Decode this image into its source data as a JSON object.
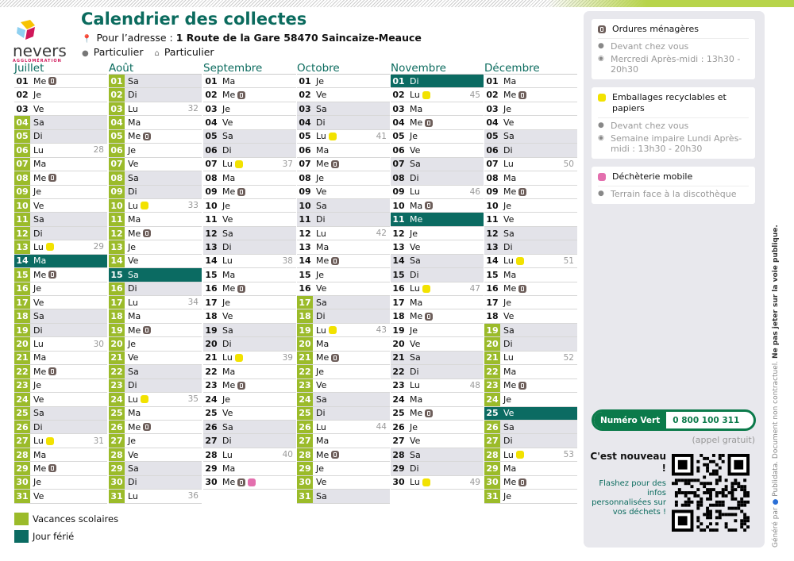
{
  "header": {
    "title": "Calendrier des collectes",
    "address_label": "Pour l’adresse :",
    "address": "1 Route de la Gare 58470 Saincaize-Meauce",
    "profile1": "Particulier",
    "profile2": "Particulier"
  },
  "logo": {
    "word": "nevers",
    "sub": "AGGLOMÉRATION"
  },
  "colors": {
    "vacances": "#9bbb2a",
    "ferie": "#0b6b62",
    "weekend": "#e3e3e9",
    "title": "#0b6b5e"
  },
  "months": [
    {
      "name": "Juillet",
      "days": [
        {
          "d": "01",
          "w": "Me",
          "ic": [
            "ordures"
          ]
        },
        {
          "d": "02",
          "w": "Je"
        },
        {
          "d": "03",
          "w": "Ve"
        },
        {
          "d": "04",
          "w": "Sa",
          "t": "v"
        },
        {
          "d": "05",
          "w": "Di",
          "t": "v"
        },
        {
          "d": "06",
          "w": "Lu",
          "wk": "28",
          "t": "v"
        },
        {
          "d": "07",
          "w": "Ma",
          "t": "v"
        },
        {
          "d": "08",
          "w": "Me",
          "ic": [
            "ordures"
          ],
          "t": "v"
        },
        {
          "d": "09",
          "w": "Je",
          "t": "v"
        },
        {
          "d": "10",
          "w": "Ve",
          "t": "v"
        },
        {
          "d": "11",
          "w": "Sa",
          "t": "v"
        },
        {
          "d": "12",
          "w": "Di",
          "t": "v"
        },
        {
          "d": "13",
          "w": "Lu",
          "wk": "29",
          "ic": [
            "emballages"
          ],
          "t": "v"
        },
        {
          "d": "14",
          "w": "Ma",
          "t": "f"
        },
        {
          "d": "15",
          "w": "Me",
          "ic": [
            "ordures"
          ],
          "t": "v"
        },
        {
          "d": "16",
          "w": "Je",
          "t": "v"
        },
        {
          "d": "17",
          "w": "Ve",
          "t": "v"
        },
        {
          "d": "18",
          "w": "Sa",
          "t": "v"
        },
        {
          "d": "19",
          "w": "Di",
          "t": "v"
        },
        {
          "d": "20",
          "w": "Lu",
          "wk": "30",
          "t": "v"
        },
        {
          "d": "21",
          "w": "Ma",
          "t": "v"
        },
        {
          "d": "22",
          "w": "Me",
          "ic": [
            "ordures"
          ],
          "t": "v"
        },
        {
          "d": "23",
          "w": "Je",
          "t": "v"
        },
        {
          "d": "24",
          "w": "Ve",
          "t": "v"
        },
        {
          "d": "25",
          "w": "Sa",
          "t": "v"
        },
        {
          "d": "26",
          "w": "Di",
          "t": "v"
        },
        {
          "d": "27",
          "w": "Lu",
          "wk": "31",
          "ic": [
            "emballages"
          ],
          "t": "v"
        },
        {
          "d": "28",
          "w": "Ma",
          "t": "v"
        },
        {
          "d": "29",
          "w": "Me",
          "ic": [
            "ordures"
          ],
          "t": "v"
        },
        {
          "d": "30",
          "w": "Je",
          "t": "v"
        },
        {
          "d": "31",
          "w": "Ve",
          "t": "v"
        }
      ]
    },
    {
      "name": "Août",
      "days": [
        {
          "d": "01",
          "w": "Sa",
          "t": "v"
        },
        {
          "d": "02",
          "w": "Di",
          "t": "v"
        },
        {
          "d": "03",
          "w": "Lu",
          "wk": "32",
          "t": "v"
        },
        {
          "d": "04",
          "w": "Ma",
          "t": "v"
        },
        {
          "d": "05",
          "w": "Me",
          "ic": [
            "ordures"
          ],
          "t": "v"
        },
        {
          "d": "06",
          "w": "Je",
          "t": "v"
        },
        {
          "d": "07",
          "w": "Ve",
          "t": "v"
        },
        {
          "d": "08",
          "w": "Sa",
          "t": "v"
        },
        {
          "d": "09",
          "w": "Di",
          "t": "v"
        },
        {
          "d": "10",
          "w": "Lu",
          "wk": "33",
          "ic": [
            "emballages"
          ],
          "t": "v"
        },
        {
          "d": "11",
          "w": "Ma",
          "t": "v"
        },
        {
          "d": "12",
          "w": "Me",
          "ic": [
            "ordures"
          ],
          "t": "v"
        },
        {
          "d": "13",
          "w": "Je",
          "t": "v"
        },
        {
          "d": "14",
          "w": "Ve",
          "t": "v"
        },
        {
          "d": "15",
          "w": "Sa",
          "t": "f"
        },
        {
          "d": "16",
          "w": "Di",
          "t": "v"
        },
        {
          "d": "17",
          "w": "Lu",
          "wk": "34",
          "t": "v"
        },
        {
          "d": "18",
          "w": "Ma",
          "t": "v"
        },
        {
          "d": "19",
          "w": "Me",
          "ic": [
            "ordures"
          ],
          "t": "v"
        },
        {
          "d": "20",
          "w": "Je",
          "t": "v"
        },
        {
          "d": "21",
          "w": "Ve",
          "t": "v"
        },
        {
          "d": "22",
          "w": "Sa",
          "t": "v"
        },
        {
          "d": "23",
          "w": "Di",
          "t": "v"
        },
        {
          "d": "24",
          "w": "Lu",
          "wk": "35",
          "ic": [
            "emballages"
          ],
          "t": "v"
        },
        {
          "d": "25",
          "w": "Ma",
          "t": "v"
        },
        {
          "d": "26",
          "w": "Me",
          "ic": [
            "ordures"
          ],
          "t": "v"
        },
        {
          "d": "27",
          "w": "Je",
          "t": "v"
        },
        {
          "d": "28",
          "w": "Ve",
          "t": "v"
        },
        {
          "d": "29",
          "w": "Sa",
          "t": "v"
        },
        {
          "d": "30",
          "w": "Di",
          "t": "v"
        },
        {
          "d": "31",
          "w": "Lu",
          "wk": "36",
          "t": "v"
        }
      ]
    },
    {
      "name": "Septembre",
      "days": [
        {
          "d": "01",
          "w": "Ma"
        },
        {
          "d": "02",
          "w": "Me",
          "ic": [
            "ordures"
          ]
        },
        {
          "d": "03",
          "w": "Je"
        },
        {
          "d": "04",
          "w": "Ve"
        },
        {
          "d": "05",
          "w": "Sa"
        },
        {
          "d": "06",
          "w": "Di"
        },
        {
          "d": "07",
          "w": "Lu",
          "wk": "37",
          "ic": [
            "emballages"
          ]
        },
        {
          "d": "08",
          "w": "Ma"
        },
        {
          "d": "09",
          "w": "Me",
          "ic": [
            "ordures"
          ]
        },
        {
          "d": "10",
          "w": "Je"
        },
        {
          "d": "11",
          "w": "Ve"
        },
        {
          "d": "12",
          "w": "Sa"
        },
        {
          "d": "13",
          "w": "Di"
        },
        {
          "d": "14",
          "w": "Lu",
          "wk": "38"
        },
        {
          "d": "15",
          "w": "Ma"
        },
        {
          "d": "16",
          "w": "Me",
          "ic": [
            "ordures"
          ]
        },
        {
          "d": "17",
          "w": "Je"
        },
        {
          "d": "18",
          "w": "Ve"
        },
        {
          "d": "19",
          "w": "Sa"
        },
        {
          "d": "20",
          "w": "Di"
        },
        {
          "d": "21",
          "w": "Lu",
          "wk": "39",
          "ic": [
            "emballages"
          ]
        },
        {
          "d": "22",
          "w": "Ma"
        },
        {
          "d": "23",
          "w": "Me",
          "ic": [
            "ordures"
          ]
        },
        {
          "d": "24",
          "w": "Je"
        },
        {
          "d": "25",
          "w": "Ve"
        },
        {
          "d": "26",
          "w": "Sa"
        },
        {
          "d": "27",
          "w": "Di"
        },
        {
          "d": "28",
          "w": "Lu",
          "wk": "40"
        },
        {
          "d": "29",
          "w": "Ma"
        },
        {
          "d": "30",
          "w": "Me",
          "ic": [
            "ordures",
            "dechets"
          ]
        }
      ]
    },
    {
      "name": "Octobre",
      "days": [
        {
          "d": "01",
          "w": "Je"
        },
        {
          "d": "02",
          "w": "Ve"
        },
        {
          "d": "03",
          "w": "Sa"
        },
        {
          "d": "04",
          "w": "Di"
        },
        {
          "d": "05",
          "w": "Lu",
          "wk": "41",
          "ic": [
            "emballages"
          ]
        },
        {
          "d": "06",
          "w": "Ma"
        },
        {
          "d": "07",
          "w": "Me",
          "ic": [
            "ordures"
          ]
        },
        {
          "d": "08",
          "w": "Je"
        },
        {
          "d": "09",
          "w": "Ve"
        },
        {
          "d": "10",
          "w": "Sa"
        },
        {
          "d": "11",
          "w": "Di"
        },
        {
          "d": "12",
          "w": "Lu",
          "wk": "42"
        },
        {
          "d": "13",
          "w": "Ma"
        },
        {
          "d": "14",
          "w": "Me",
          "ic": [
            "ordures"
          ]
        },
        {
          "d": "15",
          "w": "Je"
        },
        {
          "d": "16",
          "w": "Ve"
        },
        {
          "d": "17",
          "w": "Sa",
          "t": "v"
        },
        {
          "d": "18",
          "w": "Di",
          "t": "v"
        },
        {
          "d": "19",
          "w": "Lu",
          "wk": "43",
          "ic": [
            "emballages"
          ],
          "t": "v"
        },
        {
          "d": "20",
          "w": "Ma",
          "t": "v"
        },
        {
          "d": "21",
          "w": "Me",
          "ic": [
            "ordures"
          ],
          "t": "v"
        },
        {
          "d": "22",
          "w": "Je",
          "t": "v"
        },
        {
          "d": "23",
          "w": "Ve",
          "t": "v"
        },
        {
          "d": "24",
          "w": "Sa",
          "t": "v"
        },
        {
          "d": "25",
          "w": "Di",
          "t": "v"
        },
        {
          "d": "26",
          "w": "Lu",
          "wk": "44",
          "t": "v"
        },
        {
          "d": "27",
          "w": "Ma",
          "t": "v"
        },
        {
          "d": "28",
          "w": "Me",
          "ic": [
            "ordures"
          ],
          "t": "v"
        },
        {
          "d": "29",
          "w": "Je",
          "t": "v"
        },
        {
          "d": "30",
          "w": "Ve",
          "t": "v"
        },
        {
          "d": "31",
          "w": "Sa",
          "t": "v"
        }
      ]
    },
    {
      "name": "Novembre",
      "days": [
        {
          "d": "01",
          "w": "Di",
          "t": "f"
        },
        {
          "d": "02",
          "w": "Lu",
          "wk": "45",
          "ic": [
            "emballages"
          ]
        },
        {
          "d": "03",
          "w": "Ma"
        },
        {
          "d": "04",
          "w": "Me",
          "ic": [
            "ordures"
          ]
        },
        {
          "d": "05",
          "w": "Je"
        },
        {
          "d": "06",
          "w": "Ve"
        },
        {
          "d": "07",
          "w": "Sa"
        },
        {
          "d": "08",
          "w": "Di"
        },
        {
          "d": "09",
          "w": "Lu",
          "wk": "46"
        },
        {
          "d": "10",
          "w": "Ma",
          "ic": [
            "ordures"
          ]
        },
        {
          "d": "11",
          "w": "Me",
          "t": "f"
        },
        {
          "d": "12",
          "w": "Je"
        },
        {
          "d": "13",
          "w": "Ve"
        },
        {
          "d": "14",
          "w": "Sa"
        },
        {
          "d": "15",
          "w": "Di"
        },
        {
          "d": "16",
          "w": "Lu",
          "wk": "47",
          "ic": [
            "emballages"
          ]
        },
        {
          "d": "17",
          "w": "Ma"
        },
        {
          "d": "18",
          "w": "Me",
          "ic": [
            "ordures"
          ]
        },
        {
          "d": "19",
          "w": "Je"
        },
        {
          "d": "20",
          "w": "Ve"
        },
        {
          "d": "21",
          "w": "Sa"
        },
        {
          "d": "22",
          "w": "Di"
        },
        {
          "d": "23",
          "w": "Lu",
          "wk": "48"
        },
        {
          "d": "24",
          "w": "Ma"
        },
        {
          "d": "25",
          "w": "Me",
          "ic": [
            "ordures"
          ]
        },
        {
          "d": "26",
          "w": "Je"
        },
        {
          "d": "27",
          "w": "Ve"
        },
        {
          "d": "28",
          "w": "Sa"
        },
        {
          "d": "29",
          "w": "Di"
        },
        {
          "d": "30",
          "w": "Lu",
          "wk": "49",
          "ic": [
            "emballages"
          ]
        }
      ]
    },
    {
      "name": "Décembre",
      "days": [
        {
          "d": "01",
          "w": "Ma"
        },
        {
          "d": "02",
          "w": "Me",
          "ic": [
            "ordures"
          ]
        },
        {
          "d": "03",
          "w": "Je"
        },
        {
          "d": "04",
          "w": "Ve"
        },
        {
          "d": "05",
          "w": "Sa"
        },
        {
          "d": "06",
          "w": "Di"
        },
        {
          "d": "07",
          "w": "Lu",
          "wk": "50"
        },
        {
          "d": "08",
          "w": "Ma"
        },
        {
          "d": "09",
          "w": "Me",
          "ic": [
            "ordures"
          ]
        },
        {
          "d": "10",
          "w": "Je"
        },
        {
          "d": "11",
          "w": "Ve"
        },
        {
          "d": "12",
          "w": "Sa"
        },
        {
          "d": "13",
          "w": "Di"
        },
        {
          "d": "14",
          "w": "Lu",
          "wk": "51",
          "ic": [
            "emballages"
          ]
        },
        {
          "d": "15",
          "w": "Ma"
        },
        {
          "d": "16",
          "w": "Me",
          "ic": [
            "ordures"
          ]
        },
        {
          "d": "17",
          "w": "Je"
        },
        {
          "d": "18",
          "w": "Ve"
        },
        {
          "d": "19",
          "w": "Sa",
          "t": "v"
        },
        {
          "d": "20",
          "w": "Di",
          "t": "v"
        },
        {
          "d": "21",
          "w": "Lu",
          "wk": "52",
          "t": "v"
        },
        {
          "d": "22",
          "w": "Ma",
          "t": "v"
        },
        {
          "d": "23",
          "w": "Me",
          "ic": [
            "ordures"
          ],
          "t": "v"
        },
        {
          "d": "24",
          "w": "Je",
          "t": "v"
        },
        {
          "d": "25",
          "w": "Ve",
          "t": "f"
        },
        {
          "d": "26",
          "w": "Sa",
          "t": "v"
        },
        {
          "d": "27",
          "w": "Di",
          "t": "v"
        },
        {
          "d": "28",
          "w": "Lu",
          "wk": "53",
          "ic": [
            "emballages"
          ],
          "t": "v"
        },
        {
          "d": "29",
          "w": "Ma",
          "t": "v"
        },
        {
          "d": "30",
          "w": "Me",
          "ic": [
            "ordures"
          ],
          "t": "v"
        },
        {
          "d": "31",
          "w": "Je",
          "t": "v"
        }
      ]
    }
  ],
  "legend": {
    "vacances": "Vacances scolaires",
    "ferie": "Jour férié"
  },
  "panel": {
    "ordures": {
      "title": "Ordures ménagères",
      "place": "Devant chez vous",
      "time": "Mercredi Après-midi : 13h30 - 20h30"
    },
    "emballages": {
      "title": "Emballages recyclables et papiers",
      "place": "Devant chez vous",
      "time": "Semaine impaire Lundi Après-midi : 13h30 - 20h30"
    },
    "dechets": {
      "title": "Déchèterie mobile",
      "place": "Terrain face à la discothèque"
    },
    "phone_label": "Numéro Vert",
    "phone": "0 800 100 311",
    "free": "(appel gratuit)",
    "new_title": "C'est nouveau !",
    "new_desc": "Flashez pour des infos personnalisées sur vos déchets !"
  },
  "footer": {
    "generated": "Généré par",
    "brand": "Publidata.",
    "disclaimer": "Document non contractuel.",
    "warning": "Ne pas jeter sur la voie publique."
  }
}
